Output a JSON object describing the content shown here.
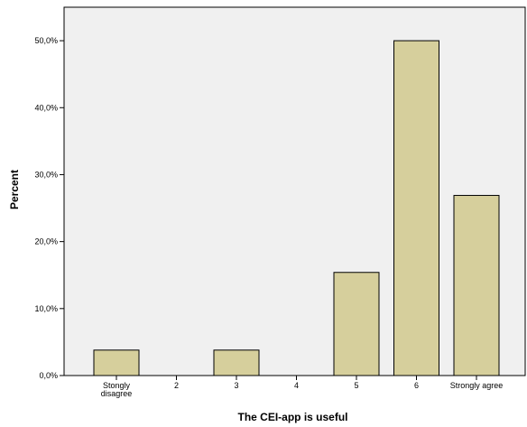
{
  "chart_data": {
    "type": "bar",
    "xlabel": "The CEI-app is useful",
    "ylabel": "Percent",
    "categories": [
      "Stongly\ndisagree",
      "2",
      "3",
      "4",
      "5",
      "6",
      "Strongly agree"
    ],
    "values": [
      3.8,
      0.0,
      3.8,
      0.0,
      15.4,
      50.0,
      26.9
    ],
    "ylim": [
      0,
      55
    ],
    "yticks": [
      0,
      10,
      20,
      30,
      40,
      50
    ],
    "ytick_labels": [
      "0,0%",
      "10,0%",
      "20,0%",
      "30,0%",
      "40,0%",
      "50,0%"
    ],
    "grid": false,
    "legend": "none",
    "bar_color": "#d6cf9c",
    "bar_edge_color": "#000000",
    "background_color": "#f0f0f0"
  }
}
